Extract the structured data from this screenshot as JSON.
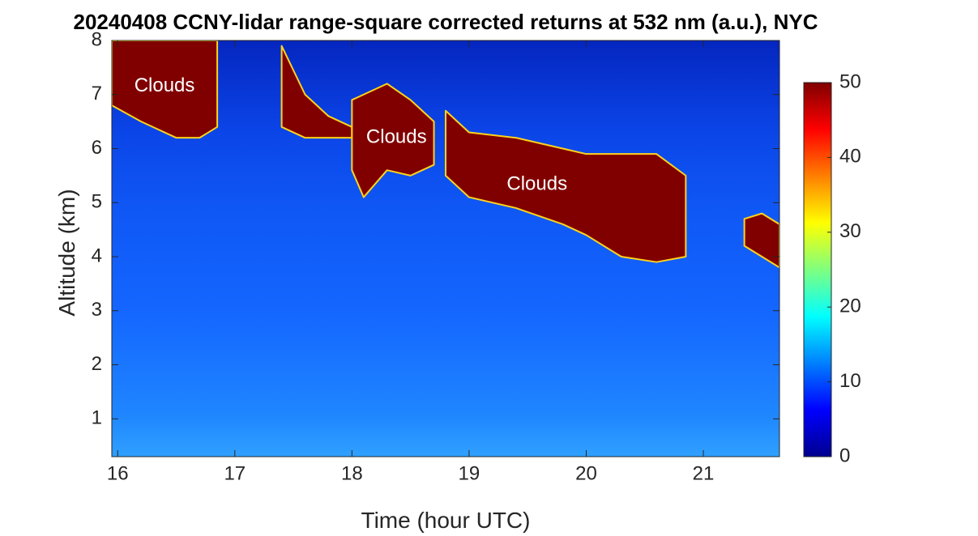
{
  "chart_data": {
    "type": "heatmap",
    "title": "20240408 CCNY-lidar range-square corrected returns at 532 nm (a.u.), NYC",
    "xlabel": "Time (hour UTC)",
    "ylabel": "Altitude (km)",
    "xlim": [
      15.95,
      21.65
    ],
    "ylim": [
      0.3,
      8
    ],
    "xticks": [
      16,
      17,
      18,
      19,
      20,
      21
    ],
    "yticks": [
      1,
      2,
      3,
      4,
      5,
      6,
      7,
      8
    ],
    "colorbar": {
      "range": [
        0,
        50
      ],
      "ticks": [
        0,
        10,
        20,
        30,
        40,
        50
      ],
      "colormap": "jet"
    },
    "annotations": [
      {
        "text": "Clouds",
        "x": 16.4,
        "y": 7.15
      },
      {
        "text": "Clouds",
        "x": 18.38,
        "y": 6.2
      },
      {
        "text": "Clouds",
        "x": 19.58,
        "y": 5.33
      }
    ],
    "cloud_layers": [
      {
        "x": [
          15.95,
          16.2,
          16.5,
          16.7,
          16.85
        ],
        "base_km": [
          6.8,
          6.5,
          6.2,
          6.2,
          6.4
        ],
        "top_km": [
          8,
          8,
          8,
          8,
          8
        ],
        "value": 50
      },
      {
        "x": [
          17.4,
          17.6,
          17.8,
          18.0
        ],
        "base_km": [
          6.4,
          6.2,
          6.2,
          6.2
        ],
        "top_km": [
          7.9,
          7.0,
          6.6,
          6.4
        ],
        "value": 50
      },
      {
        "x": [
          18.0,
          18.1,
          18.3,
          18.5,
          18.7
        ],
        "base_km": [
          5.6,
          5.1,
          5.6,
          5.5,
          5.7
        ],
        "top_km": [
          6.9,
          7.0,
          7.2,
          6.9,
          6.5
        ],
        "value": 50
      },
      {
        "x": [
          18.8,
          19.0,
          19.4,
          19.8,
          20.0,
          20.3,
          20.6,
          20.85
        ],
        "base_km": [
          5.5,
          5.1,
          4.9,
          4.6,
          4.4,
          4.0,
          3.9,
          4.0
        ],
        "top_km": [
          6.7,
          6.3,
          6.2,
          6.0,
          5.9,
          5.9,
          5.9,
          5.5
        ],
        "value": 50
      },
      {
        "x": [
          21.35,
          21.5,
          21.65
        ],
        "base_km": [
          4.2,
          4.0,
          3.8
        ],
        "top_km": [
          4.7,
          4.8,
          4.6
        ],
        "value": 50
      }
    ],
    "background": [
      {
        "altitude_km": 0.5,
        "value": 16
      },
      {
        "altitude_km": 1.2,
        "value": 13
      },
      {
        "altitude_km": 3.0,
        "value": 10
      },
      {
        "altitude_km": 5.0,
        "value": 9
      },
      {
        "altitude_km": 6.8,
        "value": 6
      },
      {
        "altitude_km": 8.0,
        "value": 3
      }
    ]
  }
}
